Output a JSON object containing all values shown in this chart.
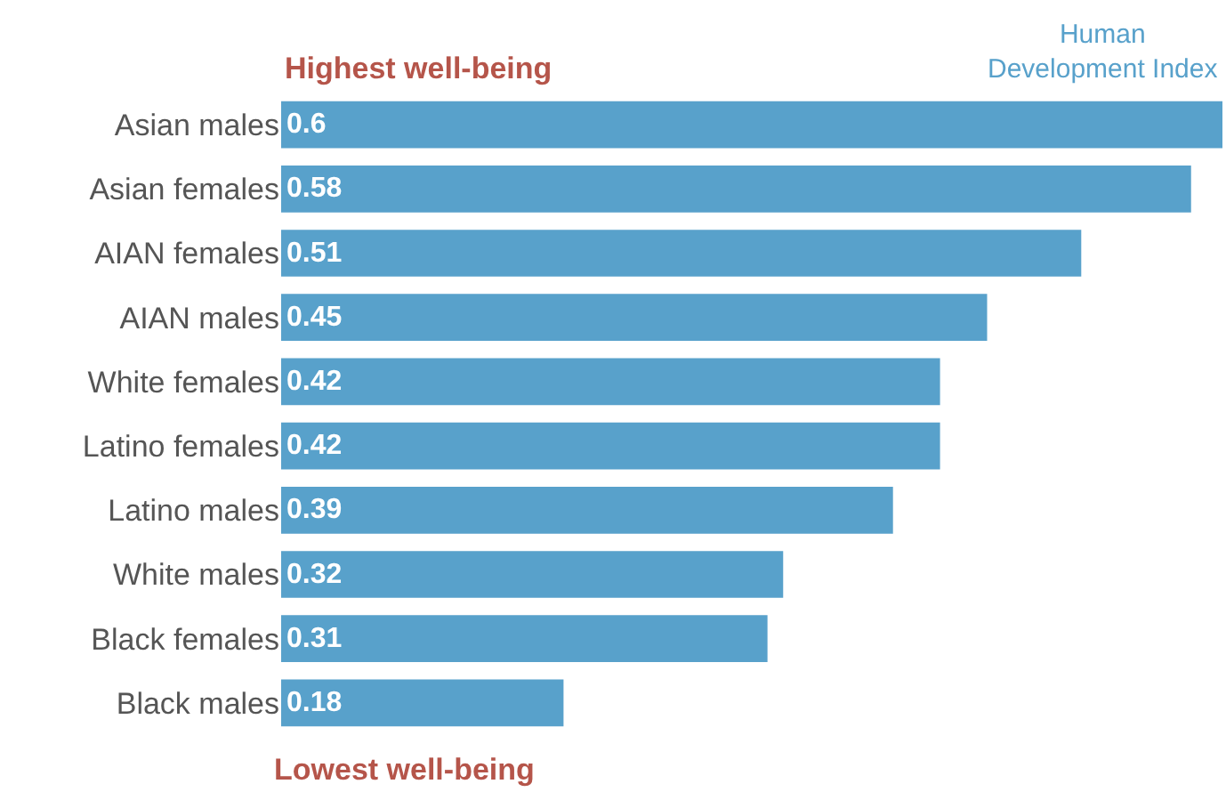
{
  "chart_data": {
    "type": "bar",
    "orientation": "horizontal",
    "categories": [
      "Asian males",
      "Asian females",
      "AIAN females",
      "AIAN males",
      "White females",
      "Latino females",
      "Latino males",
      "White males",
      "Black females",
      "Black males"
    ],
    "values": [
      0.6,
      0.58,
      0.51,
      0.45,
      0.42,
      0.42,
      0.39,
      0.32,
      0.31,
      0.18
    ],
    "color": "#58a1cb",
    "data_labels": true,
    "tick_labels": "y",
    "legend": false,
    "annotations": [
      "Highest well-being",
      "Human Development Index",
      "Lowest well-being"
    ]
  }
}
